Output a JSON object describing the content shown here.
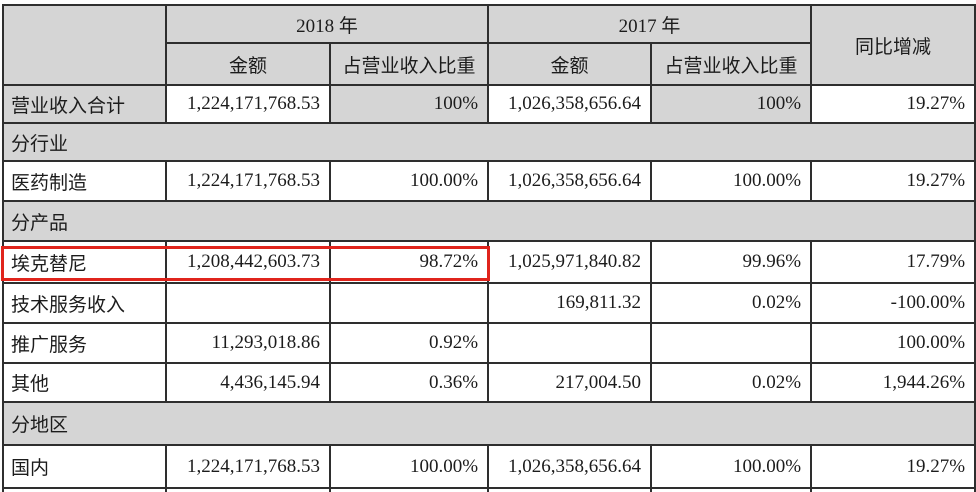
{
  "table": {
    "header": {
      "year_2018": "2018 年",
      "year_2017": "2017 年",
      "yoy": "同比增减",
      "amount_2018": "金额",
      "pct_2018": "占营业收入比重",
      "amount_2017": "金额",
      "pct_2017": "占营业收入比重"
    },
    "rows": [
      {
        "type": "total",
        "label": "营业收入合计",
        "cells": [
          "1,224,171,768.53",
          "100%",
          "1,026,358,656.64",
          "100%",
          "19.27%"
        ]
      },
      {
        "type": "section",
        "label": "分行业"
      },
      {
        "type": "data",
        "label": "医药制造",
        "cells": [
          "1,224,171,768.53",
          "100.00%",
          "1,026,358,656.64",
          "100.00%",
          "19.27%"
        ]
      },
      {
        "type": "section",
        "label": "分产品"
      },
      {
        "type": "data",
        "label": "埃克替尼",
        "highlighted": true,
        "cells": [
          "1,208,442,603.73",
          "98.72%",
          "1,025,971,840.82",
          "99.96%",
          "17.79%"
        ]
      },
      {
        "type": "data",
        "label": "技术服务收入",
        "cells": [
          "",
          "",
          "169,811.32",
          "0.02%",
          "-100.00%"
        ]
      },
      {
        "type": "data",
        "label": "推广服务",
        "cells": [
          "11,293,018.86",
          "0.92%",
          "",
          "",
          "100.00%"
        ]
      },
      {
        "type": "data",
        "label": "其他",
        "cells": [
          "4,436,145.94",
          "0.36%",
          "217,004.50",
          "0.02%",
          "1,944.26%"
        ]
      },
      {
        "type": "section",
        "label": "分地区"
      },
      {
        "type": "data",
        "label": "国内",
        "cells": [
          "1,224,171,768.53",
          "100.00%",
          "1,026,358,656.64",
          "100.00%",
          "19.27%"
        ]
      },
      {
        "type": "data",
        "label": "",
        "cells": [
          "",
          "",
          "",
          "",
          ""
        ]
      }
    ]
  },
  "colors": {
    "highlight_red": "#e0241c",
    "shade_gray": "#d5d5d5"
  }
}
